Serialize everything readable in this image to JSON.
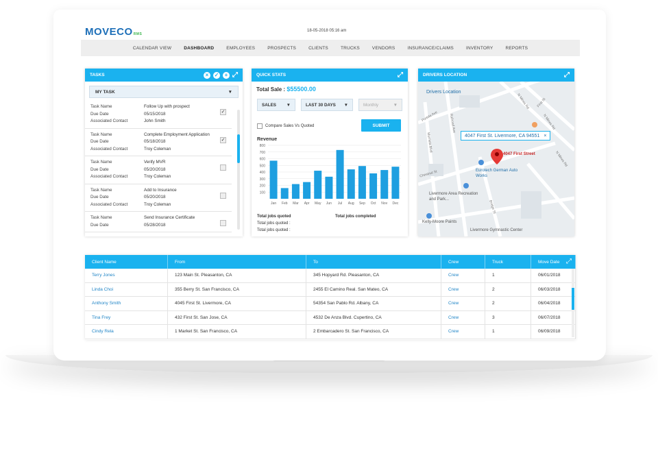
{
  "app": {
    "logo_main": "MOVECO",
    "logo_suffix": "RMS",
    "datetime": "18-05-2018 05:16 am"
  },
  "nav": [
    "CALENDAR VIEW",
    "DASHBOARD",
    "EMPLOYEES",
    "PROSPECTS",
    "CLIENTS",
    "TRUCKS",
    "VENDORS",
    "INSURANCE/CLAIMS",
    "INVENTORY",
    "REPORTS"
  ],
  "nav_active": "DASHBOARD",
  "tasks": {
    "title": "TASKS",
    "filter": "MY TASK",
    "labels": {
      "name": "Task Name",
      "due": "Due Date",
      "contact": "Associated Contact"
    },
    "items": [
      {
        "name": "Follow Up with prospect",
        "due": "05/15/2018",
        "contact": "John Smith",
        "checked": true
      },
      {
        "name": "Complete Employment Application",
        "due": "05/18/2018",
        "contact": "Troy Coleman",
        "checked": true
      },
      {
        "name": "Verify MVR",
        "due": "05/20/2018",
        "contact": "Troy Coleman",
        "checked": false
      },
      {
        "name": "Add to Insurance",
        "due": "05/20/2018",
        "contact": "Troy Coleman",
        "checked": false
      },
      {
        "name": "Send Insurance Certificate",
        "due": "05/28/2018",
        "contact": "",
        "checked": false
      }
    ]
  },
  "stats": {
    "title": "QUICK STATS",
    "total_label": "Total Sale :",
    "total_value": "$55500.00",
    "sel1": "SALES",
    "sel2": "LAST 30 DAYS",
    "sel3": "Monthly",
    "compare": "Compare Sales Vs Quoted",
    "submit": "SUBMIT",
    "revenue_label": "Revenue",
    "jobs_quoted_title": "Total jobs quoted",
    "jobs_completed_title": "Total jobs completed",
    "jobs_quoted_1": "Total jobs quoted :",
    "jobs_quoted_2": "Total jobs quoted :"
  },
  "chart_data": {
    "type": "bar",
    "categories": [
      "Jan",
      "Feb",
      "Mar",
      "Apr",
      "May",
      "Jun",
      "Jul",
      "Aug",
      "Sep",
      "Oct",
      "Nov",
      "Dec"
    ],
    "values": [
      570,
      160,
      220,
      250,
      420,
      330,
      730,
      440,
      490,
      380,
      430,
      480
    ],
    "ylim": [
      0,
      800
    ],
    "yticks": [
      100,
      200,
      300,
      400,
      500,
      600,
      700,
      800
    ],
    "color": "#1e9fe0"
  },
  "map": {
    "title": "DRIVERS LOCATION",
    "header_link": "Drivers Location",
    "tip": "4047 First St. Livermore, CA 94551",
    "pin_label": "4047 First Street",
    "places": [
      "Eurotech German Auto Works",
      "Livermore Area Recreation and Park...",
      "Kelly-Moore Paints",
      "Livermore Gymnastic Center"
    ],
    "streets": [
      "N Mines Rd",
      "First St",
      "N Mines Rd",
      "Portola Ave",
      "Railroad Ave",
      "Murrieta Blvd",
      "Chestnut St",
      "N Mines Rd",
      "Bridge St"
    ]
  },
  "table": {
    "headers": [
      "Client Name",
      "From",
      "To",
      "Crew",
      "Truck",
      "Move Date"
    ],
    "rows": [
      [
        "Terry Jones",
        "123 Main St. Pleasanton, CA",
        "345 Hopyard Rd. Pleasanton, CA",
        "Crew",
        "1",
        "06/01/2018"
      ],
      [
        "Linda Choi",
        "355 Berry St. San Francisco, CA",
        "2455 El Camino Real. San Mateo, CA",
        "Crew",
        "2",
        "06/03/2018"
      ],
      [
        "Anthony Smith",
        "4045 First St. Livermore, CA",
        "54354 San Pablo Rd. Albany, CA",
        "Crew",
        "2",
        "06/04/2018"
      ],
      [
        "Tina Frey",
        "432 First St. San Jose, CA",
        "4532 De Anza Blvd. Cupertino, CA",
        "Crew",
        "3",
        "06/07/2018"
      ],
      [
        "Cindy Rela",
        "1 Market St. San Francisco, CA",
        "2 Embarcadero St. San Francisco, CA",
        "Crew",
        "1",
        "06/09/2018"
      ]
    ]
  }
}
